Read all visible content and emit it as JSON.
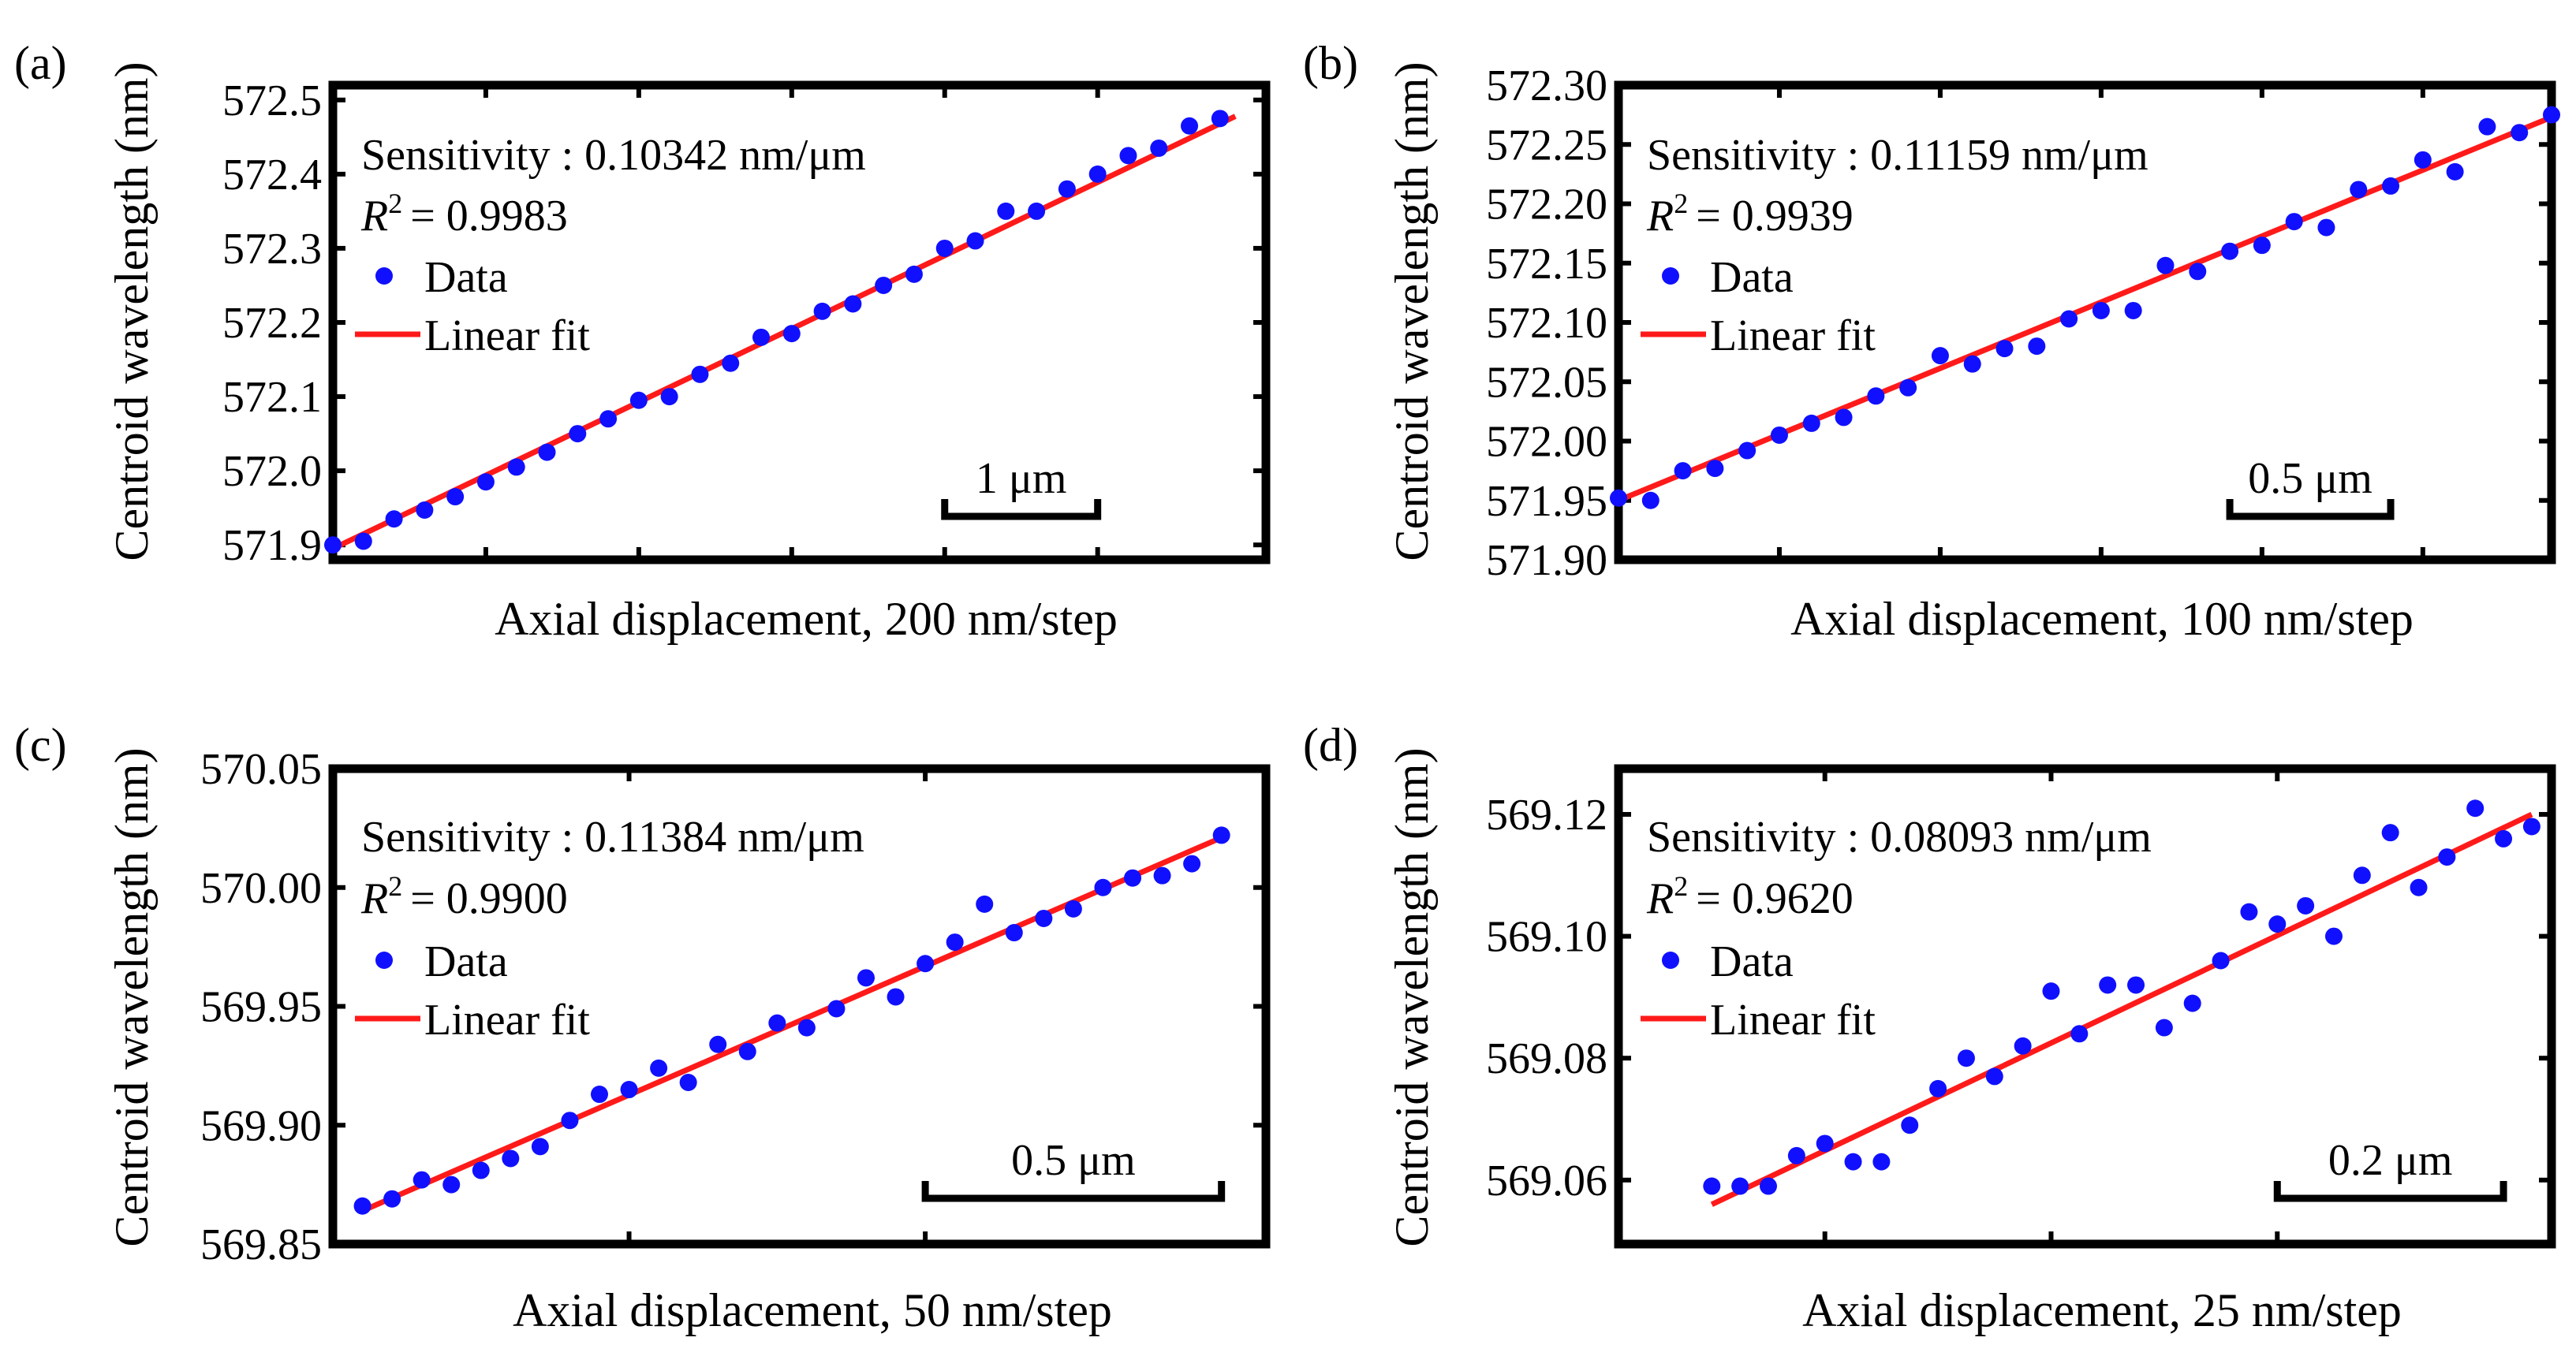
{
  "colors": {
    "data": "#1010ff",
    "fit": "#ff1a1a",
    "frame": "#000000"
  },
  "legend": {
    "data_label": "Data",
    "fit_label": "Linear fit"
  },
  "chart_data": [
    {
      "type": "scatter",
      "panel": "(a)",
      "xlabel": "Axial displacement, 200 nm/step",
      "ylabel": "Centroid wavelength (nm)",
      "ylim": [
        571.88,
        572.52
      ],
      "yticks": [
        571.9,
        572.0,
        572.1,
        572.2,
        572.3,
        572.4,
        572.5
      ],
      "ytick_labels": [
        "571.9",
        "572.0",
        "572.1",
        "572.2",
        "572.3",
        "572.4",
        "572.5"
      ],
      "xlim": [
        0,
        30.5
      ],
      "xticks": [
        5,
        10,
        15,
        20,
        25
      ],
      "sensitivity_label": "Sensitivity : 0.10342 nm/μm",
      "r2_value": "= 0.9983",
      "scale_bar": {
        "label": "1 μm",
        "x_start": 20,
        "x_end": 25
      },
      "series": [
        {
          "name": "Data",
          "x": [
            0,
            1,
            2,
            3,
            4,
            5,
            6,
            7,
            8,
            9,
            10,
            11,
            12,
            13,
            14,
            15,
            16,
            17,
            18,
            19,
            20,
            21,
            22,
            23,
            24,
            25,
            26,
            27,
            28,
            29
          ],
          "y": [
            571.9,
            571.905,
            571.935,
            571.947,
            571.965,
            571.985,
            572.005,
            572.025,
            572.05,
            572.07,
            572.095,
            572.1,
            572.13,
            572.145,
            572.18,
            572.185,
            572.215,
            572.225,
            572.25,
            572.265,
            572.3,
            572.31,
            572.35,
            572.35,
            572.38,
            572.4,
            572.425,
            572.435,
            572.465,
            572.475
          ]
        },
        {
          "name": "Linear fit",
          "x": [
            0,
            29.5
          ],
          "y": [
            571.895,
            572.478
          ]
        }
      ]
    },
    {
      "type": "scatter",
      "panel": "(b)",
      "xlabel": "Axial displacement, 100 nm/step",
      "ylabel": "Centroid wavelength (nm)",
      "ylim": [
        571.9,
        572.3
      ],
      "yticks": [
        571.9,
        571.95,
        572.0,
        572.05,
        572.1,
        572.15,
        572.2,
        572.25,
        572.3
      ],
      "ytick_labels": [
        "571.90",
        "571.95",
        "572.00",
        "572.05",
        "572.10",
        "572.15",
        "572.20",
        "572.25",
        "572.30"
      ],
      "xlim": [
        0,
        29
      ],
      "xticks": [
        5,
        10,
        15,
        20,
        25
      ],
      "sensitivity_label": "Sensitivity : 0.11159 nm/μm",
      "r2_value": "= 0.9939",
      "scale_bar": {
        "label": "0.5 μm",
        "x_start": 19,
        "x_end": 24
      },
      "series": [
        {
          "name": "Data",
          "x": [
            0,
            1,
            2,
            3,
            4,
            5,
            6,
            7,
            8,
            9,
            10,
            11,
            12,
            13,
            14,
            15,
            16,
            17,
            18,
            19,
            20,
            21,
            22,
            23,
            24,
            25,
            26,
            27,
            28,
            29
          ],
          "y": [
            571.952,
            571.95,
            571.975,
            571.977,
            571.992,
            572.005,
            572.015,
            572.02,
            572.038,
            572.045,
            572.072,
            572.065,
            572.078,
            572.08,
            572.103,
            572.11,
            572.11,
            572.148,
            572.143,
            572.16,
            572.165,
            572.185,
            572.18,
            572.212,
            572.215,
            572.237,
            572.227,
            572.265,
            572.26,
            572.275
          ]
        },
        {
          "name": "Linear fit",
          "x": [
            0,
            29
          ],
          "y": [
            571.95,
            572.273
          ]
        }
      ]
    },
    {
      "type": "scatter",
      "panel": "(c)",
      "xlabel": "Axial displacement, 50 nm/step",
      "ylabel": "Centroid wavelength (nm)",
      "ylim": [
        569.85,
        570.05
      ],
      "yticks": [
        569.85,
        569.9,
        569.95,
        570.0,
        570.05
      ],
      "ytick_labels": [
        "569.85",
        "569.90",
        "569.95",
        "570.00",
        "570.05"
      ],
      "xlim": [
        -1,
        30.5
      ],
      "xticks": [
        9,
        19
      ],
      "sensitivity_label": "Sensitivity : 0.11384 nm/μm",
      "r2_value": "= 0.9900",
      "scale_bar": {
        "label": "0.5 μm",
        "x_start": 19,
        "x_end": 29
      },
      "series": [
        {
          "name": "Data",
          "x": [
            0,
            1,
            2,
            3,
            4,
            5,
            6,
            7,
            8,
            9,
            10,
            11,
            12,
            13,
            14,
            15,
            16,
            17,
            18,
            19,
            20,
            21,
            22,
            23,
            24,
            25,
            26,
            27,
            28,
            29
          ],
          "y": [
            569.866,
            569.869,
            569.877,
            569.875,
            569.881,
            569.886,
            569.891,
            569.902,
            569.913,
            569.915,
            569.924,
            569.918,
            569.934,
            569.931,
            569.943,
            569.941,
            569.949,
            569.962,
            569.954,
            569.968,
            569.977,
            569.993,
            569.981,
            569.987,
            569.991,
            570.0,
            570.004,
            570.005,
            570.01,
            570.022
          ]
        },
        {
          "name": "Linear fit",
          "x": [
            0,
            29
          ],
          "y": [
            569.864,
            570.021
          ]
        }
      ]
    },
    {
      "type": "scatter",
      "panel": "(d)",
      "xlabel": "Axial displacement, 25 nm/step",
      "ylabel": "Centroid wavelength (nm)",
      "ylim": [
        569.0495,
        569.1275
      ],
      "yticks": [
        569.06,
        569.08,
        569.1,
        569.12
      ],
      "ytick_labels": [
        "569.06",
        "569.08",
        "569.10",
        "569.12"
      ],
      "xlim": [
        -3.3,
        29.7
      ],
      "xticks": [
        4,
        12,
        20
      ],
      "sensitivity_label": "Sensitivity : 0.08093 nm/μm",
      "r2_value": "= 0.9620",
      "scale_bar": {
        "label": "0.2 μm",
        "x_start": 20,
        "x_end": 28
      },
      "series": [
        {
          "name": "Data",
          "x": [
            0,
            1,
            2,
            3,
            4,
            5,
            6,
            7,
            8,
            9,
            10,
            11,
            12,
            13,
            14,
            15,
            16,
            17,
            18,
            19,
            20,
            21,
            22,
            23,
            24,
            25,
            26,
            27,
            28,
            29
          ],
          "y": [
            569.059,
            569.059,
            569.059,
            569.064,
            569.066,
            569.063,
            569.063,
            569.069,
            569.075,
            569.08,
            569.077,
            569.082,
            569.091,
            569.084,
            569.092,
            569.092,
            569.085,
            569.089,
            569.096,
            569.104,
            569.102,
            569.105,
            569.1,
            569.11,
            569.117,
            569.108,
            569.113,
            569.121,
            569.116,
            569.118
          ]
        },
        {
          "name": "Linear fit",
          "x": [
            0,
            29
          ],
          "y": [
            569.056,
            569.12
          ]
        }
      ]
    }
  ]
}
